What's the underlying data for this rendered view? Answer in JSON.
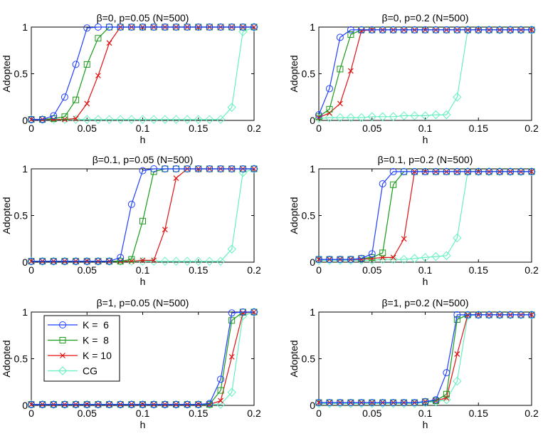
{
  "colors": {
    "K6": "#1f3fff",
    "K8": "#1a9a1a",
    "K10": "#e01010",
    "CG": "#66f0c0"
  },
  "legend": {
    "entries": [
      {
        "label": "K =  6",
        "marker": "circle"
      },
      {
        "label": "K =  8",
        "marker": "square"
      },
      {
        "label": "K = 10",
        "marker": "x"
      },
      {
        "label": "CG",
        "marker": "diamond"
      }
    ]
  },
  "chart_data": [
    {
      "type": "line",
      "title": "β=0, p=0.05 (N=500)",
      "xlabel": "h",
      "ylabel": "Adopted",
      "xlim": [
        0,
        0.2
      ],
      "ylim": [
        0,
        1
      ],
      "xticks": [
        "0",
        "0.05",
        "0.1",
        "0.15",
        "0.2"
      ],
      "yticks": [
        "0",
        "0.5",
        "1"
      ],
      "x": [
        0,
        0.01,
        0.02,
        0.03,
        0.04,
        0.05,
        0.06,
        0.07,
        0.08,
        0.09,
        0.1,
        0.11,
        0.12,
        0.13,
        0.14,
        0.15,
        0.16,
        0.17,
        0.18,
        0.19,
        0.2
      ],
      "series": [
        {
          "name": "K =  6",
          "values": [
            0.01,
            0.01,
            0.05,
            0.25,
            0.6,
            0.99,
            1,
            1,
            1,
            1,
            1,
            1,
            1,
            1,
            1,
            1,
            1,
            1,
            1,
            1,
            1
          ]
        },
        {
          "name": "K =  8",
          "values": [
            0.01,
            0.01,
            0.02,
            0.04,
            0.22,
            0.6,
            0.88,
            1,
            1,
            1,
            1,
            1,
            1,
            1,
            1,
            1,
            1,
            1,
            1,
            1,
            1
          ]
        },
        {
          "name": "K = 10",
          "values": [
            0.01,
            0.01,
            0.01,
            0.01,
            0.02,
            0.18,
            0.48,
            0.83,
            1,
            1,
            1,
            1,
            1,
            1,
            1,
            1,
            1,
            1,
            1,
            1,
            1
          ]
        },
        {
          "name": "CG",
          "values": [
            0.01,
            0.01,
            0.01,
            0.01,
            0.01,
            0.01,
            0.01,
            0.01,
            0.01,
            0.01,
            0.01,
            0.01,
            0.01,
            0.01,
            0.01,
            0.01,
            0.01,
            0.01,
            0.14,
            0.95,
            1
          ]
        }
      ]
    },
    {
      "type": "line",
      "title": "β=0, p=0.2 (N=500)",
      "xlabel": "h",
      "ylabel": "Adopted",
      "xlim": [
        0,
        0.2
      ],
      "ylim": [
        0,
        1
      ],
      "xticks": [
        "0",
        "0.05",
        "0.1",
        "0.15",
        "0.2"
      ],
      "yticks": [
        "0",
        "0.5",
        "1"
      ],
      "x": [
        0,
        0.01,
        0.02,
        0.03,
        0.04,
        0.05,
        0.06,
        0.07,
        0.08,
        0.09,
        0.1,
        0.11,
        0.12,
        0.13,
        0.14,
        0.15,
        0.16,
        0.17,
        0.18,
        0.19,
        0.2
      ],
      "series": [
        {
          "name": "K =  6",
          "values": [
            0.06,
            0.34,
            0.89,
            0.97,
            0.97,
            0.97,
            0.97,
            0.97,
            0.97,
            0.97,
            0.97,
            0.97,
            0.97,
            0.97,
            0.97,
            0.97,
            0.97,
            0.97,
            0.97,
            0.97,
            0.97
          ]
        },
        {
          "name": "K =  8",
          "values": [
            0.04,
            0.12,
            0.55,
            0.92,
            0.97,
            0.97,
            0.97,
            0.97,
            0.97,
            0.97,
            0.97,
            0.97,
            0.97,
            0.97,
            0.97,
            0.97,
            0.97,
            0.97,
            0.97,
            0.97,
            0.97
          ]
        },
        {
          "name": "K = 10",
          "values": [
            0.03,
            0.08,
            0.18,
            0.53,
            0.96,
            0.97,
            0.97,
            0.97,
            0.97,
            0.97,
            0.97,
            0.97,
            0.97,
            0.97,
            0.97,
            0.97,
            0.97,
            0.97,
            0.97,
            0.97,
            0.97
          ]
        },
        {
          "name": "CG",
          "values": [
            0.02,
            0.03,
            0.03,
            0.03,
            0.03,
            0.04,
            0.04,
            0.04,
            0.05,
            0.05,
            0.05,
            0.06,
            0.06,
            0.25,
            0.97,
            0.97,
            0.97,
            0.97,
            0.97,
            0.97,
            0.97
          ]
        }
      ]
    },
    {
      "type": "line",
      "title": "β=0.1, p=0.05 (N=500)",
      "xlabel": "h",
      "ylabel": "Adopted",
      "xlim": [
        0,
        0.2
      ],
      "ylim": [
        0,
        1
      ],
      "xticks": [
        "0",
        "0.05",
        "0.1",
        "0.15",
        "0.2"
      ],
      "yticks": [
        "0",
        "0.5",
        "1"
      ],
      "x": [
        0,
        0.01,
        0.02,
        0.03,
        0.04,
        0.05,
        0.06,
        0.07,
        0.08,
        0.09,
        0.1,
        0.11,
        0.12,
        0.13,
        0.14,
        0.15,
        0.16,
        0.17,
        0.18,
        0.19,
        0.2
      ],
      "series": [
        {
          "name": "K =  6",
          "values": [
            0.01,
            0.01,
            0.01,
            0.01,
            0.01,
            0.01,
            0.01,
            0.01,
            0.05,
            0.62,
            0.98,
            1,
            1,
            1,
            1,
            1,
            1,
            1,
            1,
            1,
            1
          ]
        },
        {
          "name": "K =  8",
          "values": [
            0.01,
            0.01,
            0.01,
            0.01,
            0.01,
            0.01,
            0.01,
            0.01,
            0.01,
            0.03,
            0.44,
            0.97,
            1,
            1,
            1,
            1,
            1,
            1,
            1,
            1,
            1
          ]
        },
        {
          "name": "K = 10",
          "values": [
            0.01,
            0.01,
            0.01,
            0.01,
            0.01,
            0.01,
            0.01,
            0.01,
            0.01,
            0.01,
            0.02,
            0.02,
            0.35,
            0.9,
            1,
            1,
            1,
            1,
            1,
            1,
            1
          ]
        },
        {
          "name": "CG",
          "values": [
            0.01,
            0.01,
            0.01,
            0.01,
            0.01,
            0.01,
            0.01,
            0.01,
            0.01,
            0.01,
            0.01,
            0.01,
            0.01,
            0.01,
            0.01,
            0.01,
            0.01,
            0.01,
            0.14,
            0.96,
            1
          ]
        }
      ]
    },
    {
      "type": "line",
      "title": "β=0.1, p=0.2 (N=500)",
      "xlabel": "h",
      "ylabel": "Adopted",
      "xlim": [
        0,
        0.2
      ],
      "ylim": [
        0,
        1
      ],
      "xticks": [
        "0",
        "0.05",
        "0.1",
        "0.15",
        "0.2"
      ],
      "yticks": [
        "0",
        "0.5",
        "1"
      ],
      "x": [
        0,
        0.01,
        0.02,
        0.03,
        0.04,
        0.05,
        0.06,
        0.07,
        0.08,
        0.09,
        0.1,
        0.11,
        0.12,
        0.13,
        0.14,
        0.15,
        0.16,
        0.17,
        0.18,
        0.19,
        0.2
      ],
      "series": [
        {
          "name": "K =  6",
          "values": [
            0.03,
            0.03,
            0.03,
            0.03,
            0.04,
            0.09,
            0.84,
            0.97,
            0.97,
            0.97,
            0.97,
            0.97,
            0.97,
            0.97,
            0.97,
            0.97,
            0.97,
            0.97,
            0.97,
            0.97,
            0.97
          ]
        },
        {
          "name": "K =  8",
          "values": [
            0.03,
            0.03,
            0.03,
            0.03,
            0.04,
            0.05,
            0.1,
            0.83,
            0.97,
            0.97,
            0.97,
            0.97,
            0.97,
            0.97,
            0.97,
            0.97,
            0.97,
            0.97,
            0.97,
            0.97,
            0.97
          ]
        },
        {
          "name": "K = 10",
          "values": [
            0.03,
            0.03,
            0.03,
            0.03,
            0.03,
            0.04,
            0.05,
            0.05,
            0.25,
            0.97,
            0.97,
            0.97,
            0.97,
            0.97,
            0.97,
            0.97,
            0.97,
            0.97,
            0.97,
            0.97,
            0.97
          ]
        },
        {
          "name": "CG",
          "values": [
            0.02,
            0.02,
            0.02,
            0.02,
            0.02,
            0.02,
            0.03,
            0.03,
            0.03,
            0.04,
            0.05,
            0.06,
            0.07,
            0.26,
            0.97,
            0.97,
            0.97,
            0.97,
            0.97,
            0.97,
            0.97
          ]
        }
      ]
    },
    {
      "type": "line",
      "title": "β=1, p=0.05 (N=500)",
      "xlabel": "h",
      "ylabel": "Adopted",
      "xlim": [
        0,
        0.2
      ],
      "ylim": [
        0,
        1
      ],
      "xticks": [
        "0",
        "0.05",
        "0.1",
        "0.15",
        "0.2"
      ],
      "yticks": [
        "0",
        "0.5",
        "1"
      ],
      "legend": "top-left",
      "x": [
        0,
        0.01,
        0.02,
        0.03,
        0.04,
        0.05,
        0.06,
        0.07,
        0.08,
        0.09,
        0.1,
        0.11,
        0.12,
        0.13,
        0.14,
        0.15,
        0.16,
        0.17,
        0.18,
        0.19,
        0.2
      ],
      "series": [
        {
          "name": "K =  6",
          "values": [
            0.01,
            0.01,
            0.01,
            0.01,
            0.01,
            0.01,
            0.01,
            0.01,
            0.01,
            0.01,
            0.01,
            0.01,
            0.01,
            0.01,
            0.01,
            0.01,
            0.02,
            0.28,
            0.99,
            1,
            1
          ]
        },
        {
          "name": "K =  8",
          "values": [
            0.01,
            0.01,
            0.01,
            0.01,
            0.01,
            0.01,
            0.01,
            0.01,
            0.01,
            0.01,
            0.01,
            0.01,
            0.01,
            0.01,
            0.01,
            0.01,
            0.01,
            0.16,
            0.91,
            1,
            1
          ]
        },
        {
          "name": "K = 10",
          "values": [
            0.01,
            0.01,
            0.01,
            0.01,
            0.01,
            0.01,
            0.01,
            0.01,
            0.01,
            0.01,
            0.01,
            0.01,
            0.01,
            0.01,
            0.01,
            0.01,
            0.01,
            0.05,
            0.52,
            0.99,
            1
          ]
        },
        {
          "name": "CG",
          "values": [
            0.01,
            0.01,
            0.01,
            0.01,
            0.01,
            0.01,
            0.01,
            0.01,
            0.01,
            0.01,
            0.01,
            0.01,
            0.01,
            0.01,
            0.01,
            0.01,
            0.01,
            0.01,
            0.14,
            0.96,
            1
          ]
        }
      ]
    },
    {
      "type": "line",
      "title": "β=1, p=0.2 (N=500)",
      "xlabel": "h",
      "ylabel": "Adopted",
      "xlim": [
        0,
        0.2
      ],
      "ylim": [
        0,
        1
      ],
      "xticks": [
        "0",
        "0.05",
        "0.1",
        "0.15",
        "0.2"
      ],
      "yticks": [
        "0",
        "0.5",
        "1"
      ],
      "x": [
        0,
        0.01,
        0.02,
        0.03,
        0.04,
        0.05,
        0.06,
        0.07,
        0.08,
        0.09,
        0.1,
        0.11,
        0.12,
        0.13,
        0.14,
        0.15,
        0.16,
        0.17,
        0.18,
        0.19,
        0.2
      ],
      "series": [
        {
          "name": "K =  6",
          "values": [
            0.03,
            0.03,
            0.03,
            0.03,
            0.03,
            0.03,
            0.03,
            0.03,
            0.03,
            0.03,
            0.04,
            0.06,
            0.35,
            0.97,
            0.97,
            0.97,
            0.97,
            0.97,
            0.97,
            0.97,
            0.97
          ]
        },
        {
          "name": "K =  8",
          "values": [
            0.03,
            0.03,
            0.03,
            0.03,
            0.03,
            0.03,
            0.03,
            0.03,
            0.03,
            0.03,
            0.04,
            0.05,
            0.12,
            0.92,
            0.97,
            0.97,
            0.97,
            0.97,
            0.97,
            0.97,
            0.97
          ]
        },
        {
          "name": "K = 10",
          "values": [
            0.03,
            0.03,
            0.03,
            0.03,
            0.03,
            0.03,
            0.03,
            0.03,
            0.03,
            0.03,
            0.04,
            0.05,
            0.08,
            0.55,
            0.97,
            0.97,
            0.97,
            0.97,
            0.97,
            0.97,
            0.97
          ]
        },
        {
          "name": "CG",
          "values": [
            0.02,
            0.02,
            0.02,
            0.02,
            0.02,
            0.02,
            0.02,
            0.02,
            0.02,
            0.02,
            0.03,
            0.04,
            0.06,
            0.26,
            0.96,
            0.97,
            0.97,
            0.97,
            0.97,
            0.97,
            0.97
          ]
        }
      ]
    }
  ]
}
